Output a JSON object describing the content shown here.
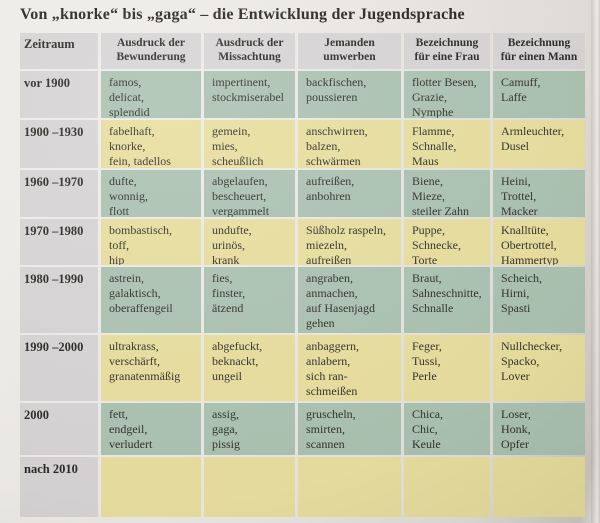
{
  "title": "Von „knorke“ bis „gaga“ – die Entwicklung der Jugendsprache",
  "colors": {
    "green": "#abc2b1",
    "yellow": "#e8de9e",
    "gray": "#d7d4d5"
  },
  "table": {
    "columns": [
      "Zeitraum",
      "Ausdruck der\nBewunderung",
      "Ausdruck der\nMissachtung",
      "Jemanden\numwerben",
      "Bezeichnung\nfür eine Frau",
      "Bezeichnung\nfür einen Mann"
    ],
    "rows": [
      {
        "period": "vor 1900",
        "tone": "green",
        "cells": [
          "famos,\ndelicat,\nsplendid",
          "impertinent,\nstockmiserabel",
          "backfischen,\npoussieren",
          "flotter Besen,\nGrazie,\nNymphe",
          "Camuff,\nLaffe"
        ]
      },
      {
        "period": "1900 –1930",
        "tone": "yellow",
        "cells": [
          "fabelhaft,\nknorke,\nfein, tadellos",
          "gemein,\nmies,\nscheußlich",
          "anschwirren,\nbalzen,\nschwärmen",
          "Flamme,\nSchnalle,\nMaus",
          "Armleuchter,\nDusel"
        ]
      },
      {
        "period": "1960 –1970",
        "tone": "green",
        "cells": [
          "dufte,\nwonnig,\nflott",
          "abgelaufen,\nbescheuert,\nvergammelt",
          "aufreißen,\nanbohren",
          "Biene,\nMieze,\nsteiler Zahn",
          "Heini,\nTrottel,\nMacker"
        ]
      },
      {
        "period": "1970 –1980",
        "tone": "yellow",
        "cells": [
          "bombastisch,\ntoff,\nhip",
          "undufte,\nurinös,\nkrank",
          "Süßholz raspeln,\nmiezeln,\naufreißen",
          "Puppe,\nSchnecke,\nTorte",
          "Knalltüte,\nObertrottel,\nHammertyp"
        ]
      },
      {
        "period": "1980 –1990",
        "tone": "green",
        "cells": [
          "astrein,\ngalaktisch,\noberaffengeil",
          "fies,\nfinster,\nätzend",
          "angraben,\nanmachen,\nauf Hasenjagd\ngehen",
          "Braut,\nSahneschnitte,\nSchnalle",
          "Scheich,\nHirni,\nSpasti"
        ]
      },
      {
        "period": "1990 –2000",
        "tone": "yellow",
        "cells": [
          "ultrakrass,\nverschärft,\ngranatenmäßig",
          "abgefuckt,\nbeknackt,\nungeil",
          "anbaggern,\nanlabern,\nsich ran-\nschmeißen",
          "Feger,\nTussi,\nPerle",
          "Nullchecker,\nSpacko,\nLover"
        ]
      },
      {
        "period": "2000",
        "tone": "green",
        "cells": [
          "fett,\nendgeil,\nverludert",
          "assig,\ngaga,\npissig",
          "gruscheln,\nsmirten,\nscannen",
          "Chica,\nChic,\nKeule",
          "Loser,\nHonk,\nOpfer"
        ]
      },
      {
        "period": "nach 2010",
        "tone": "yellow",
        "cells": [
          "",
          "",
          "",
          "",
          ""
        ]
      }
    ]
  }
}
